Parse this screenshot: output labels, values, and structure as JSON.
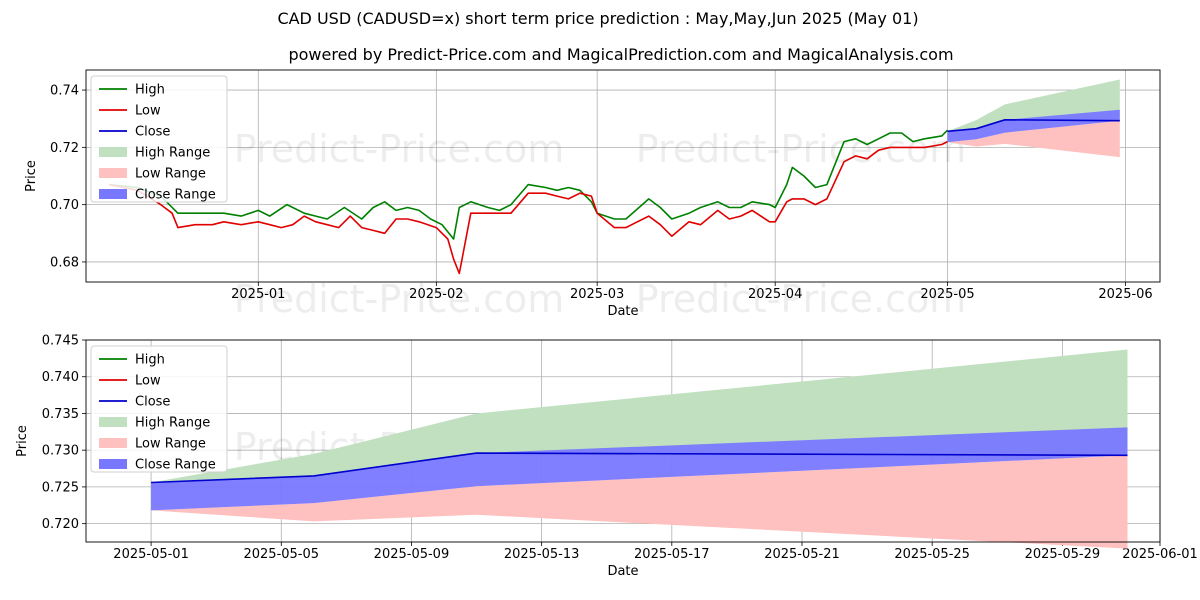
{
  "title": "CAD USD (CADUSD=x) short term price prediction : May,May,Jun 2025 (May 01)",
  "subtitle": "powered by Predict-Price.com and MagicalPrediction.com and MagicalAnalysis.com",
  "watermark": "Predict-Price.com",
  "colors": {
    "high": "#008000",
    "low": "#e00000",
    "close": "#0000cc",
    "high_range": "#c0e0c0",
    "low_range": "#ffc0c0",
    "close_range": "#7878ff"
  },
  "chart_data": [
    {
      "type": "line",
      "xlabel": "Date",
      "ylabel": "Price",
      "xlim": [
        "2024-12-02",
        "2025-06-07"
      ],
      "ylim": [
        0.673,
        0.747
      ],
      "grid": true,
      "legend_position": "top-left",
      "x_ticks": [
        "2025-01-01",
        "2025-02-01",
        "2025-03-01",
        "2025-04-01",
        "2025-05-01",
        "2025-06-01"
      ],
      "x_tick_labels": [
        "2025-01",
        "2025-02",
        "2025-03",
        "2025-04",
        "2025-05",
        "2025-06"
      ],
      "y_ticks": [
        0.68,
        0.7,
        0.72,
        0.74
      ],
      "y_tick_labels": [
        "0.68",
        "0.70",
        "0.72",
        "0.74"
      ],
      "legend": [
        "High",
        "Low",
        "Close",
        "High Range",
        "Low Range",
        "Close Range"
      ],
      "series": [
        {
          "name": "High",
          "dates": [
            "2024-12-06",
            "2024-12-11",
            "2024-12-15",
            "2024-12-18",
            "2024-12-21",
            "2024-12-24",
            "2024-12-26",
            "2024-12-29",
            "2025-01-01",
            "2025-01-03",
            "2025-01-06",
            "2025-01-09",
            "2025-01-11",
            "2025-01-13",
            "2025-01-16",
            "2025-01-19",
            "2025-01-21",
            "2025-01-23",
            "2025-01-25",
            "2025-01-27",
            "2025-01-29",
            "2025-01-31",
            "2025-02-02",
            "2025-02-04",
            "2025-02-05",
            "2025-02-07",
            "2025-02-10",
            "2025-02-12",
            "2025-02-14",
            "2025-02-17",
            "2025-02-20",
            "2025-02-22",
            "2025-02-24",
            "2025-02-26",
            "2025-02-28",
            "2025-03-01",
            "2025-03-04",
            "2025-03-06",
            "2025-03-10",
            "2025-03-12",
            "2025-03-14",
            "2025-03-17",
            "2025-03-19",
            "2025-03-22",
            "2025-03-24",
            "2025-03-26",
            "2025-03-28",
            "2025-03-31",
            "2025-04-01",
            "2025-04-03",
            "2025-04-04",
            "2025-04-06",
            "2025-04-08",
            "2025-04-10",
            "2025-04-13",
            "2025-04-15",
            "2025-04-17",
            "2025-04-19",
            "2025-04-21",
            "2025-04-23",
            "2025-04-25",
            "2025-04-27",
            "2025-04-30",
            "2025-05-01"
          ],
          "values": [
            0.707,
            0.706,
            0.703,
            0.697,
            0.697,
            0.697,
            0.697,
            0.696,
            0.698,
            0.696,
            0.7,
            0.697,
            0.696,
            0.695,
            0.699,
            0.695,
            0.699,
            0.701,
            0.698,
            0.699,
            0.698,
            0.695,
            0.693,
            0.688,
            0.699,
            0.701,
            0.699,
            0.698,
            0.7,
            0.707,
            0.706,
            0.705,
            0.706,
            0.705,
            0.701,
            0.697,
            0.695,
            0.695,
            0.702,
            0.699,
            0.695,
            0.697,
            0.699,
            0.701,
            0.699,
            0.699,
            0.701,
            0.7,
            0.699,
            0.707,
            0.713,
            0.71,
            0.706,
            0.707,
            0.722,
            0.723,
            0.721,
            0.723,
            0.725,
            0.725,
            0.722,
            0.723,
            0.724,
            0.726
          ]
        },
        {
          "name": "Low",
          "dates": [
            "2024-12-06",
            "2024-12-11",
            "2024-12-15",
            "2024-12-17",
            "2024-12-18",
            "2024-12-21",
            "2024-12-24",
            "2024-12-26",
            "2024-12-29",
            "2025-01-01",
            "2025-01-03",
            "2025-01-05",
            "2025-01-07",
            "2025-01-09",
            "2025-01-11",
            "2025-01-13",
            "2025-01-15",
            "2025-01-17",
            "2025-01-19",
            "2025-01-21",
            "2025-01-23",
            "2025-01-25",
            "2025-01-27",
            "2025-01-29",
            "2025-02-01",
            "2025-02-03",
            "2025-02-04",
            "2025-02-05",
            "2025-02-07",
            "2025-02-10",
            "2025-02-12",
            "2025-02-14",
            "2025-02-17",
            "2025-02-20",
            "2025-02-22",
            "2025-02-24",
            "2025-02-26",
            "2025-02-28",
            "2025-03-01",
            "2025-03-04",
            "2025-03-06",
            "2025-03-10",
            "2025-03-12",
            "2025-03-14",
            "2025-03-17",
            "2025-03-19",
            "2025-03-22",
            "2025-03-24",
            "2025-03-26",
            "2025-03-28",
            "2025-03-31",
            "2025-04-01",
            "2025-04-03",
            "2025-04-04",
            "2025-04-06",
            "2025-04-08",
            "2025-04-10",
            "2025-04-13",
            "2025-04-15",
            "2025-04-17",
            "2025-04-19",
            "2025-04-21",
            "2025-04-23",
            "2025-04-25",
            "2025-04-27",
            "2025-04-30",
            "2025-05-01"
          ],
          "values": [
            0.707,
            0.705,
            0.7,
            0.697,
            0.692,
            0.693,
            0.693,
            0.694,
            0.693,
            0.694,
            0.693,
            0.692,
            0.693,
            0.696,
            0.694,
            0.693,
            0.692,
            0.696,
            0.692,
            0.691,
            0.69,
            0.695,
            0.695,
            0.694,
            0.692,
            0.688,
            0.681,
            0.676,
            0.697,
            0.697,
            0.697,
            0.697,
            0.704,
            0.704,
            0.703,
            0.702,
            0.704,
            0.703,
            0.697,
            0.692,
            0.692,
            0.696,
            0.693,
            0.689,
            0.694,
            0.693,
            0.698,
            0.695,
            0.696,
            0.698,
            0.694,
            0.694,
            0.701,
            0.702,
            0.702,
            0.7,
            0.702,
            0.715,
            0.717,
            0.716,
            0.719,
            0.72,
            0.72,
            0.72,
            0.72,
            0.721,
            0.722
          ]
        },
        {
          "name": "Close",
          "dates": [
            "2025-05-01",
            "2025-05-06",
            "2025-05-11",
            "2025-05-31"
          ],
          "values": [
            0.7256,
            0.7265,
            0.7296,
            0.7293
          ]
        },
        {
          "name": "High Range",
          "dates": [
            "2025-05-01",
            "2025-05-06",
            "2025-05-11",
            "2025-05-31"
          ],
          "upper": [
            0.7256,
            0.7295,
            0.735,
            0.7437
          ],
          "lower": [
            0.7256,
            0.7265,
            0.7296,
            0.7293
          ]
        },
        {
          "name": "Low Range",
          "dates": [
            "2025-05-01",
            "2025-05-06",
            "2025-05-11",
            "2025-05-31"
          ],
          "upper": [
            0.7218,
            0.7228,
            0.7251,
            0.7293
          ],
          "lower": [
            0.7218,
            0.7203,
            0.7212,
            0.7166
          ]
        },
        {
          "name": "Close Range",
          "dates": [
            "2025-05-01",
            "2025-05-06",
            "2025-05-11",
            "2025-05-31"
          ],
          "upper": [
            0.7256,
            0.7265,
            0.7296,
            0.7331
          ],
          "lower": [
            0.7218,
            0.7228,
            0.7251,
            0.7293
          ]
        }
      ]
    },
    {
      "type": "line",
      "xlabel": "Date",
      "ylabel": "Price",
      "xlim": [
        "2024-04-30",
        "2025-06-01"
      ],
      "xlim_dates": [
        "2025-04-29",
        "2025-06-01"
      ],
      "ylim": [
        0.7175,
        0.745
      ],
      "grid": true,
      "legend_position": "top-left",
      "x_ticks": [
        "2025-05-01",
        "2025-05-05",
        "2025-05-09",
        "2025-05-13",
        "2025-05-17",
        "2025-05-21",
        "2025-05-25",
        "2025-05-29",
        "2025-06-01"
      ],
      "x_tick_labels": [
        "2025-05-01",
        "2025-05-05",
        "2025-05-09",
        "2025-05-13",
        "2025-05-17",
        "2025-05-21",
        "2025-05-25",
        "2025-05-29",
        "2025-06-01"
      ],
      "y_ticks": [
        0.72,
        0.725,
        0.73,
        0.735,
        0.74,
        0.745
      ],
      "y_tick_labels": [
        "0.720",
        "0.725",
        "0.730",
        "0.735",
        "0.740",
        "0.745"
      ],
      "legend": [
        "High",
        "Low",
        "Close",
        "High Range",
        "Low Range",
        "Close Range"
      ],
      "series": [
        {
          "name": "Close",
          "dates": [
            "2025-05-01",
            "2025-05-06",
            "2025-05-11",
            "2025-05-31"
          ],
          "values": [
            0.7256,
            0.7265,
            0.7296,
            0.7293
          ]
        },
        {
          "name": "High Range",
          "dates": [
            "2025-05-01",
            "2025-05-06",
            "2025-05-11",
            "2025-05-31"
          ],
          "upper": [
            0.7256,
            0.7295,
            0.735,
            0.7437
          ],
          "lower": [
            0.7256,
            0.7265,
            0.7296,
            0.7293
          ]
        },
        {
          "name": "Low Range",
          "dates": [
            "2025-05-01",
            "2025-05-06",
            "2025-05-11",
            "2025-05-31"
          ],
          "upper": [
            0.7218,
            0.7228,
            0.7251,
            0.7293
          ],
          "lower": [
            0.7218,
            0.7203,
            0.7212,
            0.7166
          ]
        },
        {
          "name": "Close Range",
          "dates": [
            "2025-05-01",
            "2025-05-06",
            "2025-05-11",
            "2025-05-31"
          ],
          "upper": [
            0.7256,
            0.7265,
            0.7296,
            0.7331
          ],
          "lower": [
            0.7218,
            0.7228,
            0.7251,
            0.7293
          ]
        }
      ]
    }
  ]
}
